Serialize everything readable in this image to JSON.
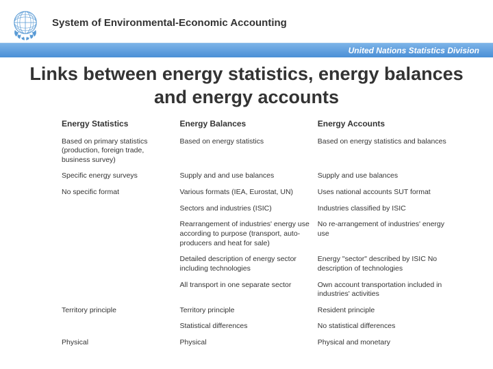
{
  "header": {
    "title": "System of Environmental-Economic Accounting",
    "division": "United Nations Statistics Division"
  },
  "main_title": "Links between energy statistics, energy balances and energy accounts",
  "table": {
    "columns": [
      "Energy Statistics",
      "Energy Balances",
      "Energy Accounts"
    ],
    "rows": [
      [
        "Based on primary statistics (production, foreign trade, business survey)",
        "Based on energy statistics",
        "Based on energy statistics and balances"
      ],
      [
        "Specific energy surveys",
        "Supply and and use balances",
        "Supply and use balances"
      ],
      [
        "No specific format",
        "Various formats (IEA, Eurostat, UN)",
        "Uses national accounts SUT format"
      ],
      [
        "",
        "Sectors and industries (ISIC)",
        "Industries classified by ISIC"
      ],
      [
        "",
        "Rearrangement of industries' energy use according to purpose (transport, auto-producers and heat for sale)",
        "No re-arrangement of industries' energy use"
      ],
      [
        "",
        "Detailed description of energy sector including technologies",
        "Energy \"sector\" described by ISIC No description of technologies"
      ],
      [
        "",
        "All transport in one separate sector",
        "Own account transportation included in industries' activities"
      ],
      [
        "Territory principle",
        "Territory principle",
        "Resident principle"
      ],
      [
        "",
        "Statistical differences",
        "No statistical differences"
      ],
      [
        "Physical",
        "Physical",
        "Physical and monetary"
      ]
    ]
  },
  "colors": {
    "emblem": "#5a9bd5",
    "band_top": "#7db4e8",
    "band_bottom": "#4a8fd6",
    "text": "#333333",
    "white": "#ffffff"
  }
}
